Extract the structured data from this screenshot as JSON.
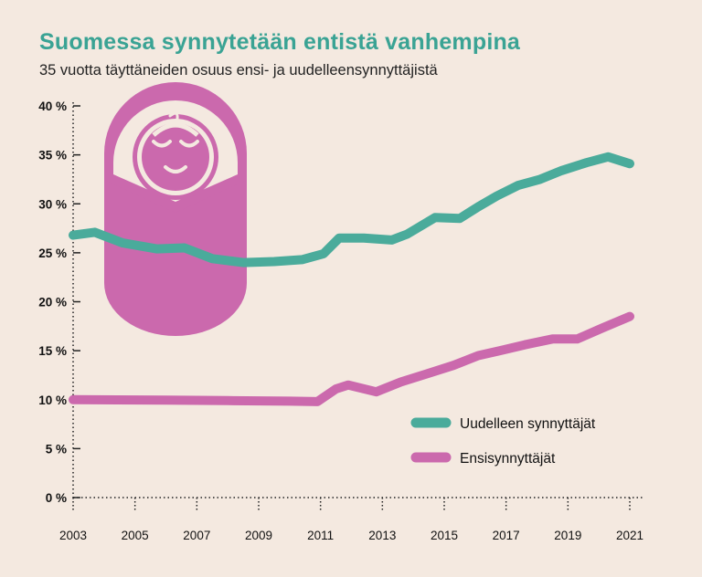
{
  "header": {
    "title": "Suomessa synnytetään entistä vanhempina",
    "subtitle": "35 vuotta täyttäneiden osuus ensi- ja uudelleensynnyttäjistä"
  },
  "colors": {
    "background": "#f4e9e0",
    "title": "#3aa394",
    "teal": "#4aab9b",
    "pink": "#cb69ad",
    "axis": "#222222"
  },
  "illustration": {
    "icon": "swaddled-baby-icon"
  },
  "chart_data": {
    "type": "line",
    "title": "Suomessa synnytetään entistä vanhempina",
    "subtitle": "35 vuotta täyttäneiden osuus ensi- ja uudelleensynnyttäjistä",
    "xlabel": "",
    "ylabel": "",
    "x_ticks": [
      "2003",
      "2005",
      "2007",
      "2009",
      "2011",
      "2013",
      "2015",
      "2017",
      "2019",
      "2021"
    ],
    "y_ticks": [
      "0 %",
      "5 %",
      "10 %",
      "15 %",
      "20 %",
      "25 %",
      "30 %",
      "35 %",
      "40 %"
    ],
    "xlim": [
      2003,
      2021
    ],
    "ylim": [
      0,
      40
    ],
    "grid": false,
    "legend_position": "bottom-right",
    "series": [
      {
        "name": "Uudelleen synnyttäjät",
        "color": "#4aab9b",
        "x": [
          2003,
          2003.7,
          2004.6,
          2005.7,
          2006.6,
          2007.5,
          2008.5,
          2009.5,
          2010.4,
          2011.1,
          2011.6,
          2012.4,
          2013.3,
          2013.8,
          2014.7,
          2015.5,
          2016.1,
          2016.7,
          2017.4,
          2018.1,
          2018.8,
          2019.6,
          2020.3,
          2021.0
        ],
        "values": [
          26.8,
          27.1,
          26.0,
          25.4,
          25.5,
          24.4,
          24.0,
          24.1,
          24.3,
          24.9,
          26.5,
          26.5,
          26.3,
          26.9,
          28.6,
          28.5,
          29.7,
          30.8,
          31.9,
          32.5,
          33.4,
          34.2,
          34.8,
          34.1
        ]
      },
      {
        "name": "Ensisynnyttäjät",
        "color": "#cb69ad",
        "x": [
          2003,
          2006.0,
          2008.0,
          2010.0,
          2010.9,
          2011.5,
          2011.9,
          2012.8,
          2013.6,
          2014.4,
          2015.3,
          2016.1,
          2016.8,
          2017.6,
          2018.5,
          2019.3,
          2020.1,
          2021.0
        ],
        "values": [
          10.0,
          9.95,
          9.9,
          9.85,
          9.8,
          11.1,
          11.5,
          10.8,
          11.8,
          12.6,
          13.5,
          14.5,
          15.0,
          15.6,
          16.2,
          16.2,
          17.3,
          18.5
        ]
      }
    ]
  }
}
